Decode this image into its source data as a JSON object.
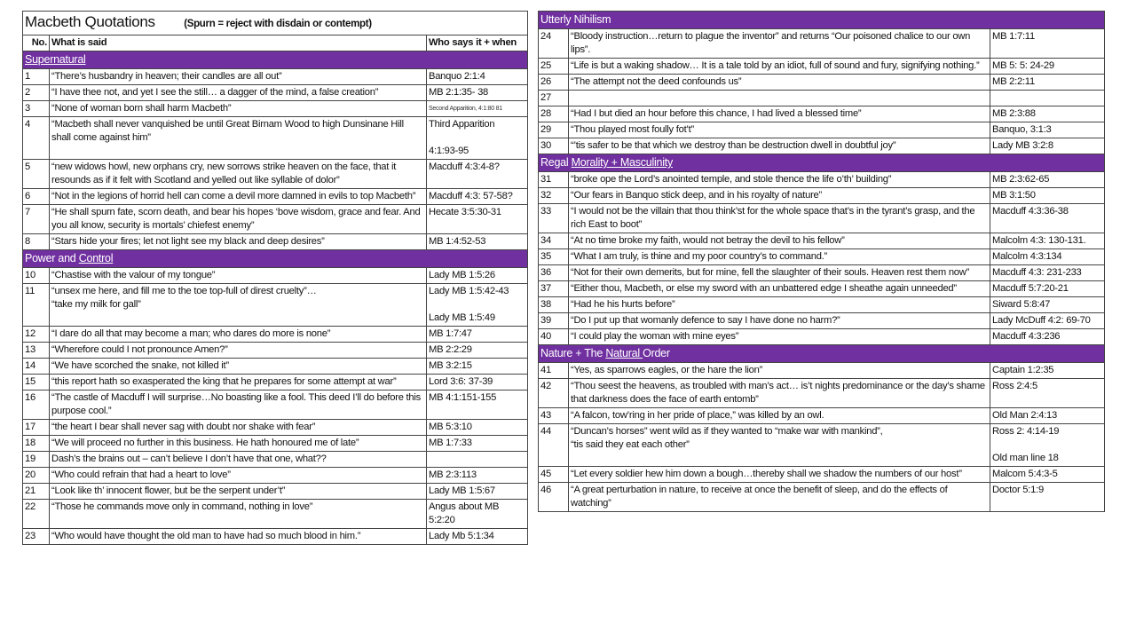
{
  "title": "Macbeth Quotations",
  "subtitle": "(Spurn = reject with disdain or contempt)",
  "columns": {
    "no": "No.",
    "said": "What is said",
    "who": "Who says it + when"
  },
  "colors": {
    "section_bg": "#7030a0",
    "section_text": "#ffffff"
  },
  "left_sections": [
    {
      "parts": [
        {
          "text": "Supernatural",
          "underline": true
        }
      ],
      "rows": [
        {
          "no": "1",
          "said": "“There’s husbandry in heaven; their candles are all out”",
          "who": "Banquo 2:1:4"
        },
        {
          "no": "2",
          "said": "“I have thee not, and yet I see the still… a dagger of the mind, a false creation”",
          "who": "MB 2:1:35- 38"
        },
        {
          "no": "3",
          "said": "“None of woman born shall harm Macbeth”",
          "who": "Second Apparition, 4:1:80 81",
          "small": true
        },
        {
          "no": "4",
          "said": "“Macbeth shall never vanquished be until Great Birnam Wood to high Dunsinane Hill shall come against him”",
          "who": "Third Apparition\n\n4:1:93-95"
        },
        {
          "no": "5",
          "said": "“new widows howl, new orphans cry, new sorrows strike heaven on the face, that it resounds as if it felt with Scotland and yelled out like syllable of dolor”",
          "who": "Macduff 4:3:4-8?"
        },
        {
          "no": "6",
          "said": "“Not in the legions of horrid hell can come a devil more damned in evils to top Macbeth”",
          "who": "Macduff 4:3: 57-58?"
        },
        {
          "no": "7",
          "said": "“He shall spurn fate, scorn death, and bear his hopes ‘bove wisdom, grace and fear. And you all know, security is mortals’ chiefest enemy”",
          "who": "Hecate 3:5:30-31"
        },
        {
          "no": "8",
          "said": "“Stars hide your fires; let not light see my black and deep desires”",
          "who": "MB 1:4:52-53"
        }
      ]
    },
    {
      "parts": [
        {
          "text": "Power and ",
          "underline": false
        },
        {
          "text": "Control",
          "underline": true
        }
      ],
      "rows": [
        {
          "no": "10",
          "said": "“Chastise with the valour of my tongue”",
          "who": "Lady MB 1:5:26"
        },
        {
          "no": "11",
          "said": "“unsex me here, and fill me to the toe top-full of direst cruelty”…\n“take my milk for gall”",
          "who": "Lady MB 1:5:42-43\n\nLady MB 1:5:49"
        },
        {
          "no": "12",
          "said": "“I dare do all that may become a man; who dares do more is none”",
          "who": "MB 1:7:47"
        },
        {
          "no": "13",
          "said": "“Wherefore could I not pronounce Amen?”",
          "who": "MB 2:2:29"
        },
        {
          "no": "14",
          "said": "“We have scorched the snake, not killed it”",
          "who": "MB 3:2:15"
        },
        {
          "no": "15",
          "said": "“this report hath so exasperated the king that he prepares for some attempt at war”",
          "who": "Lord 3:6: 37-39"
        },
        {
          "no": "16",
          "said": "“The castle of Macduff I will surprise…No boasting like a fool. This deed I’ll do before this purpose cool.”",
          "who": "MB 4:1:151-155"
        },
        {
          "no": "17",
          "said": "“the heart I bear shall never sag with doubt nor shake with fear”",
          "who": "MB 5:3:10"
        },
        {
          "no": "18",
          "said": "“We will proceed no further in this business. He hath honoured me of late”",
          "who": "MB 1:7:33"
        },
        {
          "no": "19",
          "said": "Dash’s the brains out – can’t believe I don’t have that one, what??",
          "who": ""
        },
        {
          "no": "20",
          "said": "“Who could refrain that had a heart to love”",
          "who": "MB 2:3:113"
        },
        {
          "no": "21",
          "said": "“Look like th’ innocent flower, but be the serpent under’t”",
          "who": "Lady MB 1:5:67"
        },
        {
          "no": "22",
          "said": "“Those he commands move only in command, nothing in love”",
          "who": "Angus about MB 5:2:20"
        },
        {
          "no": "23",
          "said": "“Who would have thought the old man to have had so much blood in him.”",
          "who": "Lady Mb 5:1:34"
        }
      ]
    }
  ],
  "right_sections": [
    {
      "parts": [
        {
          "text": "Utterly Nihilism",
          "underline": false
        }
      ],
      "rows": [
        {
          "no": "24",
          "said": "“Bloody instruction…return to plague the inventor” and returns “Our poisoned chalice to our own lips”.",
          "who": "MB 1:7:11"
        },
        {
          "no": "25",
          "said": "“Life is but a waking shadow… It is a tale told by an idiot, full of sound and fury, signifying nothing.”",
          "who": "MB 5: 5: 24-29"
        },
        {
          "no": "26",
          "said": "“The attempt not the deed confounds us”",
          "who": "MB 2:2:11"
        },
        {
          "no": "27",
          "said": "",
          "who": ""
        },
        {
          "no": "28",
          "said": "“Had I but died an hour before this chance, I had lived a blessed time”",
          "who": "MB 2:3:88"
        },
        {
          "no": "29",
          "said": "“Thou played most foully fot’t”",
          "who": "Banquo, 3:1:3"
        },
        {
          "no": "30",
          "said": "“’tis safer to be that which we destroy than be destruction dwell in doubtful joy”\n ",
          "who": "Lady MB 3:2:8"
        }
      ]
    },
    {
      "parts": [
        {
          "text": "Regal ",
          "underline": false
        },
        {
          "text": "Morality + Masculinity",
          "underline": true
        }
      ],
      "rows": [
        {
          "no": "31",
          "said": "“broke ope the Lord’s anointed temple, and stole thence the life o’th’ building”",
          "who": "MB 2:3:62-65"
        },
        {
          "no": "32",
          "said": "“Our fears in Banquo stick deep, and in his royalty of nature”",
          "who": "MB 3:1:50"
        },
        {
          "no": "33",
          "said": "“I would not be the villain that thou think’st for the whole space that’s in the tyrant’s grasp, and the rich East to boot”",
          "who": "Macduff 4:3:36-38"
        },
        {
          "no": "34",
          "said": "“At no time broke my faith, would not betray the devil to his fellow”",
          "who": "Malcolm 4:3: 130-131."
        },
        {
          "no": "35",
          "said": "“What I am truly, is thine and my poor country’s to command.”",
          "who": "Malcolm 4:3:134"
        },
        {
          "no": "36",
          "said": "“Not for their own demerits, but for mine, fell the slaughter of their souls. Heaven rest them now”",
          "who": "Macduff 4:3: 231-233"
        },
        {
          "no": "37",
          "said": "“Either thou, Macbeth, or else my sword with an unbattered edge I sheathe again unneeded”",
          "who": "Macduff 5:7:20-21"
        },
        {
          "no": "38",
          "said": "“Had he his hurts before”",
          "who": "Siward 5:8:47"
        },
        {
          "no": "39",
          "said": "“Do I put up that womanly defence to say I have done no harm?”",
          "who": "Lady McDuff 4:2: 69-70"
        },
        {
          "no": "40",
          "said": "“I could play the woman with mine eyes”",
          "who": "Macduff 4:3:236"
        }
      ]
    },
    {
      "parts": [
        {
          "text": "Nature + The ",
          "underline": false
        },
        {
          "text": "Natural ",
          "underline": true
        },
        {
          "text": "Order",
          "underline": false
        }
      ],
      "rows": [
        {
          "no": "41",
          "said": "“Yes, as sparrows eagles, or the hare the lion”",
          "who": "Captain 1:2:35"
        },
        {
          "no": "42",
          "said": "“Thou seest the heavens, as troubled with man’s act… is’t nights predominance or the day’s shame that darkness does the face of earth entomb”",
          "who": "Ross 2:4:5"
        },
        {
          "no": "43",
          "said": "“A falcon, tow’ring in her pride of place,” was killed by an owl.",
          "who": "Old Man 2:4:13"
        },
        {
          "no": "44",
          "said": "“Duncan’s horses” went wild as if they wanted to “make war with mankind”,\n“tis said they eat each other”",
          "who": "Ross 2: 4:14-19\n\nOld man line 18"
        },
        {
          "no": "45",
          "said": "“Let every soldier hew him down a bough…thereby shall we shadow the numbers of our host”\n ",
          "who": "Malcom 5:4:3-5"
        },
        {
          "no": "46",
          "said": "“A great perturbation in nature, to receive at once the benefit of sleep, and do the effects of watching”\n ",
          "who": "Doctor 5:1:9"
        }
      ]
    }
  ]
}
